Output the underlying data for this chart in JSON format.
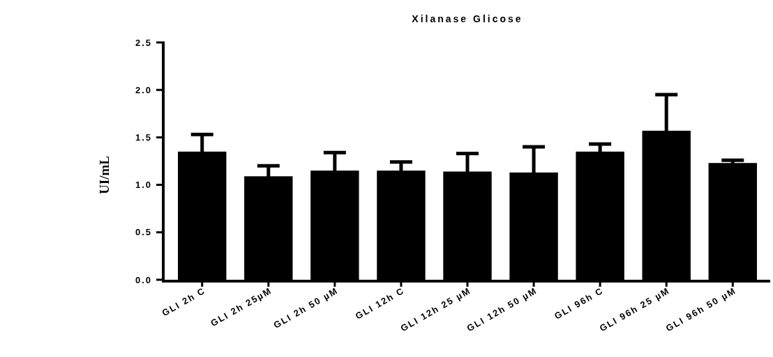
{
  "chart_data": {
    "type": "bar",
    "title": "Xilanase Glicose",
    "ylabel": "UI/mL",
    "categories": [
      "GLI 2h C",
      "GLI 2h 25µM",
      "GLI 2h 50 µM",
      "GLI 12h C",
      "GLI 12h 25 µM",
      "GLI 12h 50 µM",
      "GLI 96h C",
      "GLI 96h 25 µM",
      "GLI 96h 50 µM"
    ],
    "values": [
      1.35,
      1.09,
      1.15,
      1.15,
      1.14,
      1.13,
      1.35,
      1.57,
      1.23
    ],
    "errors": [
      0.18,
      0.11,
      0.19,
      0.09,
      0.19,
      0.27,
      0.08,
      0.38,
      0.03
    ],
    "color": "#000000",
    "ylim": [
      0,
      2.5
    ],
    "yticks": [
      {
        "value": 0,
        "label": "0.0"
      },
      {
        "value": 0.5,
        "label": "0.5"
      },
      {
        "value": 1,
        "label": "1.0"
      },
      {
        "value": 1.5,
        "label": "1.5"
      },
      {
        "value": 2,
        "label": "2.0"
      },
      {
        "value": 2.5,
        "label": "2.5"
      }
    ],
    "grid": false
  }
}
